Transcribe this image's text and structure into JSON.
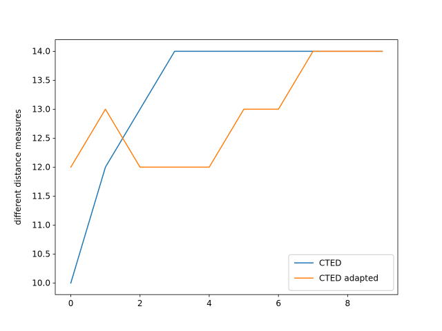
{
  "chart_data": {
    "type": "line",
    "title": "",
    "xlabel": "",
    "ylabel": "different distance measures",
    "xlim": [
      -0.45,
      9.45
    ],
    "ylim": [
      9.8,
      14.2
    ],
    "xticks": [
      0,
      2,
      4,
      6,
      8
    ],
    "xtick_labels": [
      "0",
      "2",
      "4",
      "6",
      "8"
    ],
    "yticks": [
      10.0,
      10.5,
      11.0,
      11.5,
      12.0,
      12.5,
      13.0,
      13.5,
      14.0
    ],
    "ytick_labels": [
      "10.0",
      "10.5",
      "11.0",
      "11.5",
      "12.0",
      "12.5",
      "13.0",
      "13.5",
      "14.0"
    ],
    "grid": false,
    "legend_position": "lower-right",
    "x": [
      0,
      1,
      2,
      3,
      4,
      5,
      6,
      7,
      8,
      9
    ],
    "series": [
      {
        "name": "CTED",
        "color": "#1f77b4",
        "values": [
          10,
          12,
          13,
          14,
          14,
          14,
          14,
          14,
          14,
          14
        ]
      },
      {
        "name": "CTED adapted",
        "color": "#ff7f0e",
        "values": [
          12,
          13,
          12,
          12,
          12,
          13,
          13,
          14,
          14,
          14
        ]
      }
    ]
  }
}
